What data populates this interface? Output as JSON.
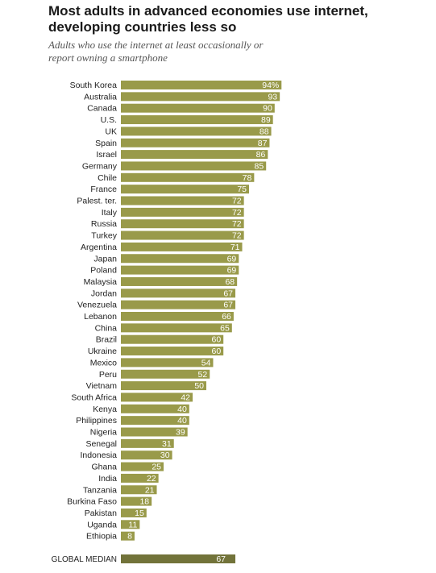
{
  "title": "Most adults in advanced economies use internet, developing countries less so",
  "subtitle": "Adults who use the internet at least occasionally or report owning a smartphone",
  "colors": {
    "bar": "#999a4a",
    "median_bar": "#72733a",
    "value_text": "#ffffff"
  },
  "chart_data": {
    "type": "bar",
    "orientation": "horizontal",
    "title": "Most adults in advanced economies use internet, developing countries less so",
    "subtitle": "Adults who use the internet at least occasionally or report owning a smartphone",
    "xlim": [
      0,
      100
    ],
    "value_format_first": "94%",
    "categories": [
      "South Korea",
      "Australia",
      "Canada",
      "U.S.",
      "UK",
      "Spain",
      "Israel",
      "Germany",
      "Chile",
      "France",
      "Palest. ter.",
      "Italy",
      "Russia",
      "Turkey",
      "Argentina",
      "Japan",
      "Poland",
      "Malaysia",
      "Jordan",
      "Venezuela",
      "Lebanon",
      "China",
      "Brazil",
      "Ukraine",
      "Mexico",
      "Peru",
      "Vietnam",
      "South Africa",
      "Kenya",
      "Philippines",
      "Nigeria",
      "Senegal",
      "Indonesia",
      "Ghana",
      "India",
      "Tanzania",
      "Burkina Faso",
      "Pakistan",
      "Uganda",
      "Ethiopia"
    ],
    "values": [
      94,
      93,
      90,
      89,
      88,
      87,
      86,
      85,
      78,
      75,
      72,
      72,
      72,
      72,
      71,
      69,
      69,
      68,
      67,
      67,
      66,
      65,
      60,
      60,
      54,
      52,
      50,
      42,
      40,
      40,
      39,
      31,
      30,
      25,
      22,
      21,
      18,
      15,
      11,
      8
    ],
    "value_labels": [
      "94%",
      "93",
      "90",
      "89",
      "88",
      "87",
      "86",
      "85",
      "78",
      "75",
      "72",
      "72",
      "72",
      "72",
      "71",
      "69",
      "69",
      "68",
      "67",
      "67",
      "66",
      "65",
      "60",
      "60",
      "54",
      "52",
      "50",
      "42",
      "40",
      "40",
      "39",
      "31",
      "30",
      "25",
      "22",
      "21",
      "18",
      "15",
      "11",
      "8"
    ],
    "median": {
      "label": "GLOBAL MEDIAN",
      "value": 67,
      "value_label": "67"
    }
  }
}
